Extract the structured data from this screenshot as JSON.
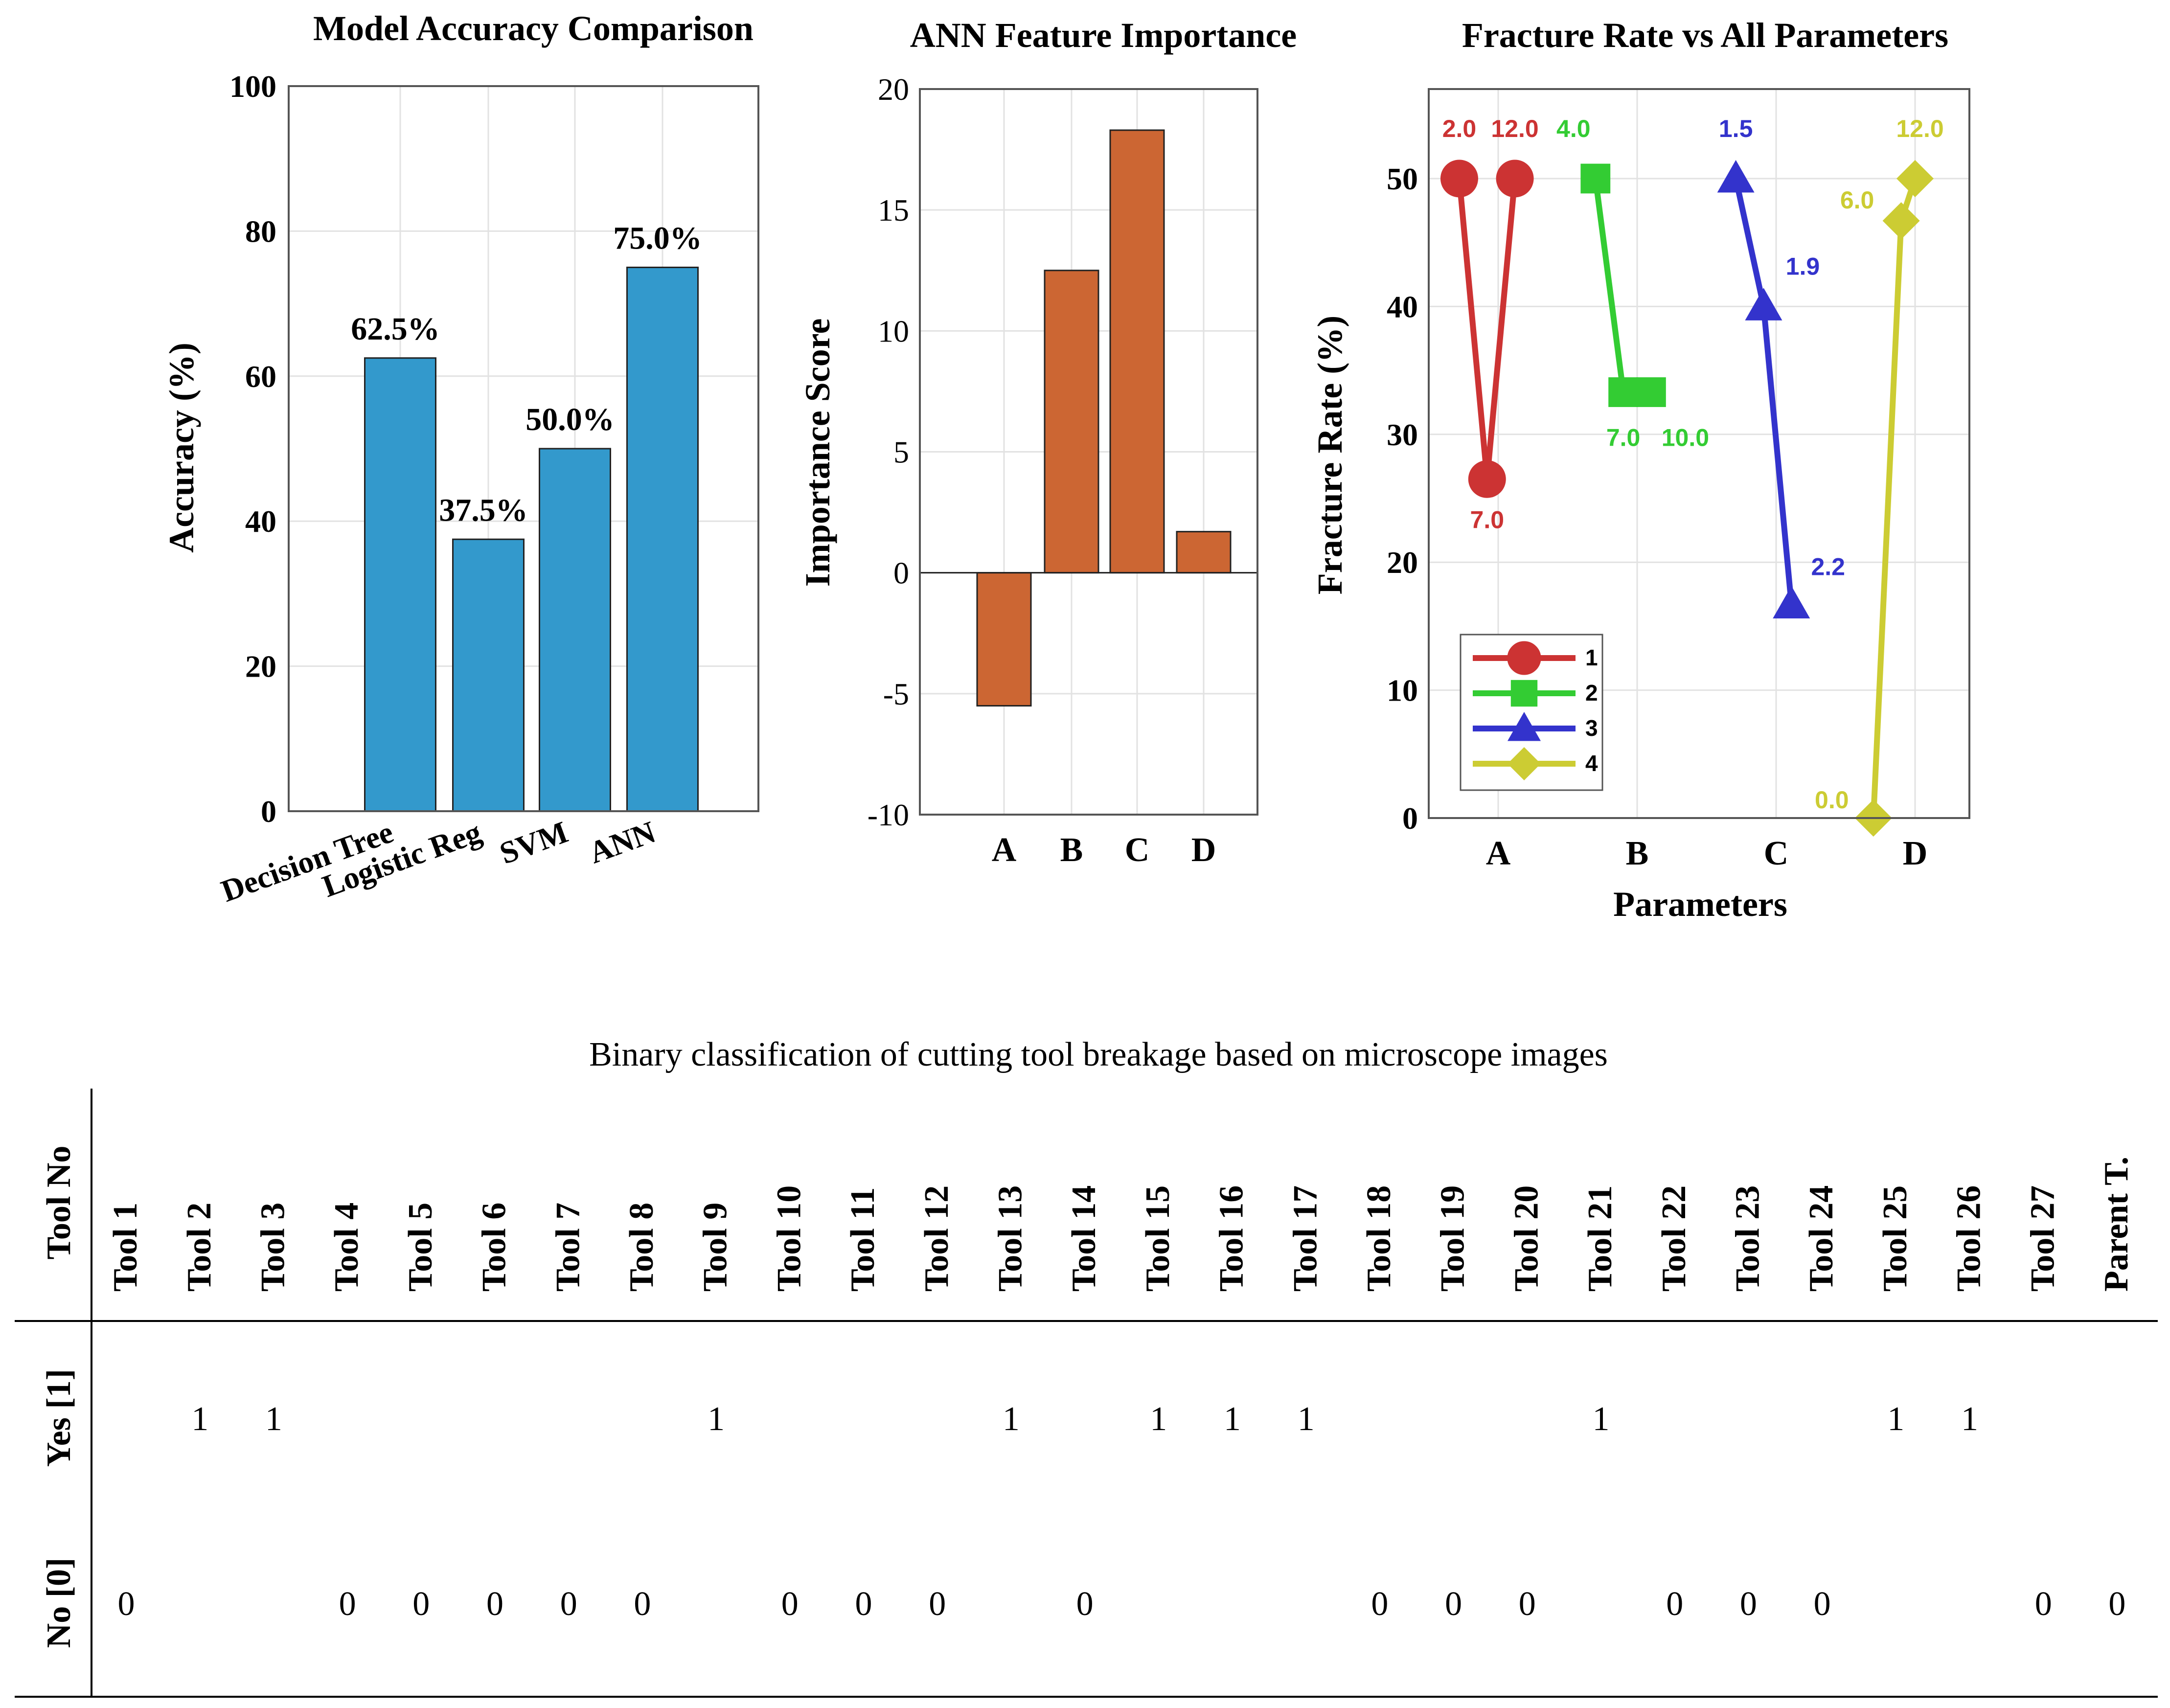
{
  "chart_data": [
    {
      "type": "bar",
      "title": "Model Accuracy Comparison",
      "xlabel": "",
      "ylabel": "Accuracy (%)",
      "categories": [
        "Decision Tree",
        "Logistic Reg",
        "SVM",
        "ANN"
      ],
      "values": [
        62.5,
        37.5,
        50.0,
        75.0
      ],
      "data_labels": [
        "62.5%",
        "37.5%",
        "50.0%",
        "75.0%"
      ],
      "ylim": [
        0,
        100
      ],
      "yticks": [
        0,
        20,
        40,
        60,
        80,
        100
      ],
      "grid": true,
      "bar_color": "#3399cc"
    },
    {
      "type": "bar",
      "title": "ANN Feature Importance",
      "xlabel": "",
      "ylabel": "Importance Score",
      "categories": [
        "A",
        "B",
        "C",
        "D"
      ],
      "values": [
        -5.5,
        12.5,
        18.3,
        1.7
      ],
      "ylim": [
        -10,
        20
      ],
      "yticks": [
        -10,
        -5,
        0,
        5,
        10,
        15,
        20
      ],
      "grid": true,
      "bar_color": "#cc6633"
    },
    {
      "type": "line",
      "title": "Fracture Rate vs All Parameters",
      "xlabel": "Parameters",
      "ylabel": "Fracture Rate (%)",
      "categories": [
        "A",
        "B",
        "C",
        "D"
      ],
      "ylim": [
        0,
        57
      ],
      "yticks": [
        0,
        10,
        20,
        30,
        40,
        50
      ],
      "grid": true,
      "legend_position": "bottom-left",
      "series": [
        {
          "name": "1",
          "group": "A",
          "color": "#cc3333",
          "marker": "circle",
          "points": [
            {
              "x": 0.72,
              "y": 50.0,
              "label": "2.0"
            },
            {
              "x": 0.92,
              "y": 26.5,
              "label": "7.0"
            },
            {
              "x": 1.12,
              "y": 50.0,
              "label": "12.0"
            }
          ]
        },
        {
          "name": "2",
          "group": "B",
          "color": "#33cc33",
          "marker": "square",
          "points": [
            {
              "x": 1.7,
              "y": 50.0,
              "label": "4.0"
            },
            {
              "x": 1.9,
              "y": 33.3,
              "label": "7.0"
            },
            {
              "x": 2.1,
              "y": 33.3,
              "label": "10.0"
            }
          ]
        },
        {
          "name": "3",
          "group": "C",
          "color": "#3333cc",
          "marker": "triangle",
          "points": [
            {
              "x": 2.71,
              "y": 50.0,
              "label": "1.5"
            },
            {
              "x": 2.91,
              "y": 40.0,
              "label": "1.9"
            },
            {
              "x": 3.11,
              "y": 16.7,
              "label": "2.2"
            }
          ]
        },
        {
          "name": "4",
          "group": "D",
          "color": "#cccc33",
          "marker": "diamond",
          "points": [
            {
              "x": 3.7,
              "y": 0.0,
              "label": "0.0"
            },
            {
              "x": 3.9,
              "y": 46.7,
              "label": "6.0"
            },
            {
              "x": 4.0,
              "y": 50.0,
              "label": "12.0"
            }
          ]
        }
      ]
    },
    {
      "type": "table",
      "title": "Binary classification of cutting tool breakage based on microscope images",
      "header_label": "Tool No",
      "columns": [
        "Tool 1",
        "Tool 2",
        "Tool 3",
        "Tool 4",
        "Tool 5",
        "Tool 6",
        "Tool 7",
        "Tool 8",
        "Tool 9",
        "Tool 10",
        "Tool 11",
        "Tool 12",
        "Tool 13",
        "Tool 14",
        "Tool 15",
        "Tool 16",
        "Tool 17",
        "Tool 18",
        "Tool 19",
        "Tool 20",
        "Tool 21",
        "Tool 22",
        "Tool 23",
        "Tool 24",
        "Tool 25",
        "Tool 26",
        "Tool 27",
        "Parent T."
      ],
      "rows": [
        {
          "label": "Yes [1]",
          "values": [
            "",
            "1",
            "1",
            "",
            "",
            "",
            "",
            "",
            "1",
            "",
            "",
            "",
            "1",
            "",
            "1",
            "1",
            "1",
            "",
            "",
            "",
            "1",
            "",
            "",
            "",
            "1",
            "1",
            "",
            ""
          ]
        },
        {
          "label": "No [0]",
          "values": [
            "0",
            "",
            "",
            "0",
            "0",
            "0",
            "0",
            "0",
            "",
            "0",
            "0",
            "0",
            "",
            "0",
            "",
            "",
            "",
            "0",
            "0",
            "0",
            "",
            "0",
            "0",
            "0",
            "",
            "",
            "0",
            "0"
          ]
        }
      ]
    }
  ]
}
